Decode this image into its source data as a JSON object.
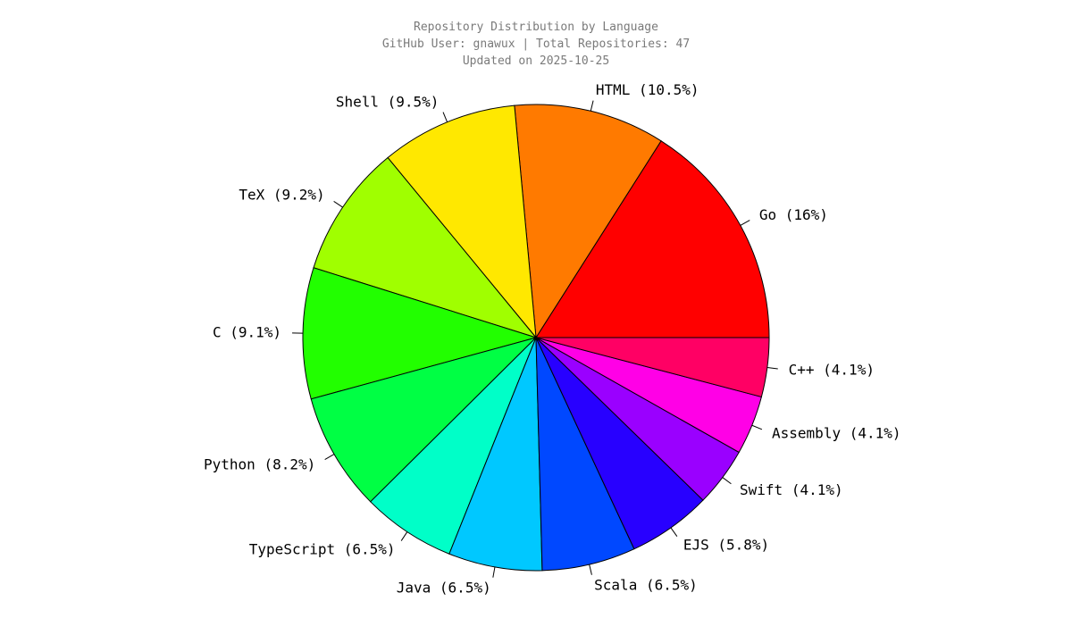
{
  "header": {
    "title": "Repository Distribution by Language",
    "subtitle": "GitHub User: gnawux | Total Repositories: 47",
    "updated": "Updated on 2025-10-25"
  },
  "chart_data": {
    "type": "pie",
    "title": "Repository Distribution by Language",
    "start_angle_deg": 0,
    "direction": "counterclockwise",
    "slices": [
      {
        "label": "Go",
        "display": "Go (16%)",
        "value": 16.0,
        "color": "#ff0000"
      },
      {
        "label": "HTML",
        "display": "HTML (10.5%)",
        "value": 10.5,
        "color": "#ff7a00"
      },
      {
        "label": "Shell",
        "display": "Shell (9.5%)",
        "value": 9.5,
        "color": "#ffe800"
      },
      {
        "label": "TeX",
        "display": "TeX (9.2%)",
        "value": 9.2,
        "color": "#a0ff00"
      },
      {
        "label": "C",
        "display": "C (9.1%)",
        "value": 9.1,
        "color": "#22ff00"
      },
      {
        "label": "Python",
        "display": "Python (8.2%)",
        "value": 8.2,
        "color": "#00ff44"
      },
      {
        "label": "TypeScript",
        "display": "TypeScript (6.5%)",
        "value": 6.5,
        "color": "#00ffc8"
      },
      {
        "label": "Java",
        "display": "Java (6.5%)",
        "value": 6.5,
        "color": "#00c8ff"
      },
      {
        "label": "Scala",
        "display": "Scala (6.5%)",
        "value": 6.5,
        "color": "#0048ff"
      },
      {
        "label": "EJS",
        "display": "EJS (5.8%)",
        "value": 5.8,
        "color": "#2800ff"
      },
      {
        "label": "Swift",
        "display": "Swift (4.1%)",
        "value": 4.1,
        "color": "#9a00ff"
      },
      {
        "label": "Assembly",
        "display": "Assembly (4.1%)",
        "value": 4.1,
        "color": "#ff00e6"
      },
      {
        "label": "C++",
        "display": "C++ (4.1%)",
        "value": 4.1,
        "color": "#ff0064"
      }
    ]
  }
}
